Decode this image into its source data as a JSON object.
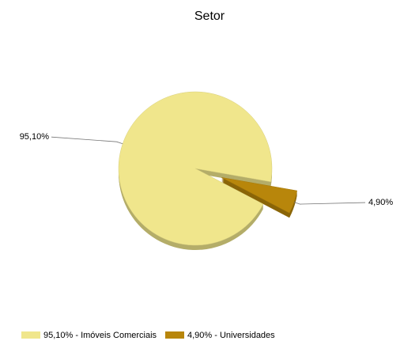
{
  "chart_data": {
    "type": "pie",
    "title": "Setor",
    "categories": [
      "95,10% - Imóveis Comerciais",
      "4,90% - Universidades"
    ],
    "values": [
      95.1,
      4.9
    ],
    "value_labels": [
      "95,10%",
      "4,90%"
    ],
    "colors": [
      "#f0e68c",
      "#b8860b"
    ],
    "legend": "bottom"
  }
}
